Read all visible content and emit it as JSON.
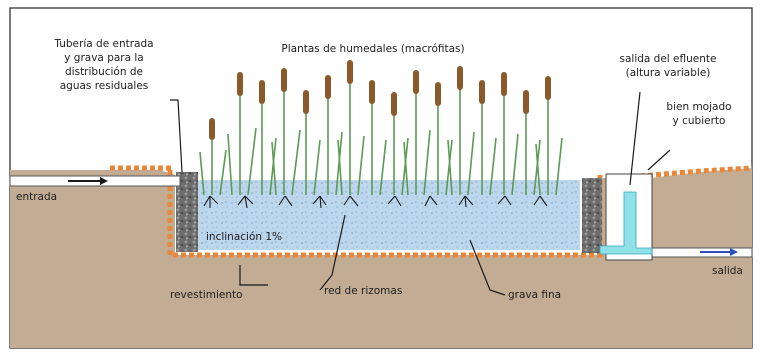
{
  "labels": {
    "inlet_pipe_line1": "Tubería de entrada",
    "inlet_pipe_line2": "y grava para la",
    "inlet_pipe_line3": "distribución de",
    "inlet_pipe_line4": "aguas residuales",
    "plants": "Plantas de humedales (macrófitas)",
    "effluent_line1": "salida del efluente",
    "effluent_line2": "(altura variable)",
    "wet_well_line1": "bien mojado",
    "wet_well_line2": "y cubierto",
    "inlet": "entrada",
    "outlet": "salida",
    "slope": "inclinación 1%",
    "liner": "revestimiento",
    "rhizomes": "red de rizomas",
    "gravel": "grava fina"
  },
  "colors": {
    "soil": "#c2ad94",
    "gravel_bed": "#bcd6ee",
    "liner": "#e8873a",
    "water_pipe": "#8fe0e8",
    "flow_arrow": "#2f4fbf",
    "plant_leaf": "#5d9a55",
    "cattail_head": "#8a5a2b"
  }
}
